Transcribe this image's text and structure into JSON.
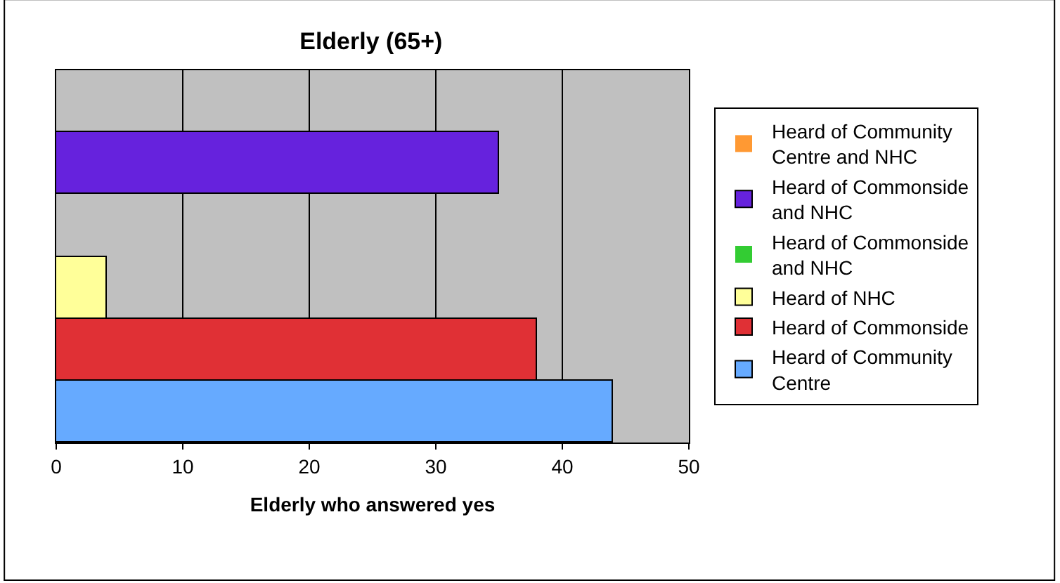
{
  "chart_data": {
    "type": "bar",
    "orientation": "horizontal",
    "title": "Elderly (65+)",
    "xlabel": "Elderly who answered yes",
    "categories": [
      null
    ],
    "series": [
      {
        "name": "Heard of Community Centre",
        "color": "#66aaff",
        "values": [
          44
        ]
      },
      {
        "name": "Heard of Commonside",
        "color": "#e03035",
        "values": [
          38
        ]
      },
      {
        "name": "Heard of NHC",
        "color": "#ffff99",
        "values": [
          4
        ]
      },
      {
        "name": "Heard of Commonside and NHC",
        "color": "#33cc33",
        "values": [
          0
        ]
      },
      {
        "name": "Heard of Commonside and NHC",
        "color": "#6622dd",
        "values": [
          35
        ]
      },
      {
        "name": "Heard of Community Centre and NHC",
        "color": "#ff9933",
        "values": [
          0
        ]
      }
    ],
    "xlim": [
      0,
      50
    ],
    "xticks": [
      0,
      10,
      20,
      30,
      40,
      50
    ],
    "grid": "x",
    "legend": "right"
  }
}
